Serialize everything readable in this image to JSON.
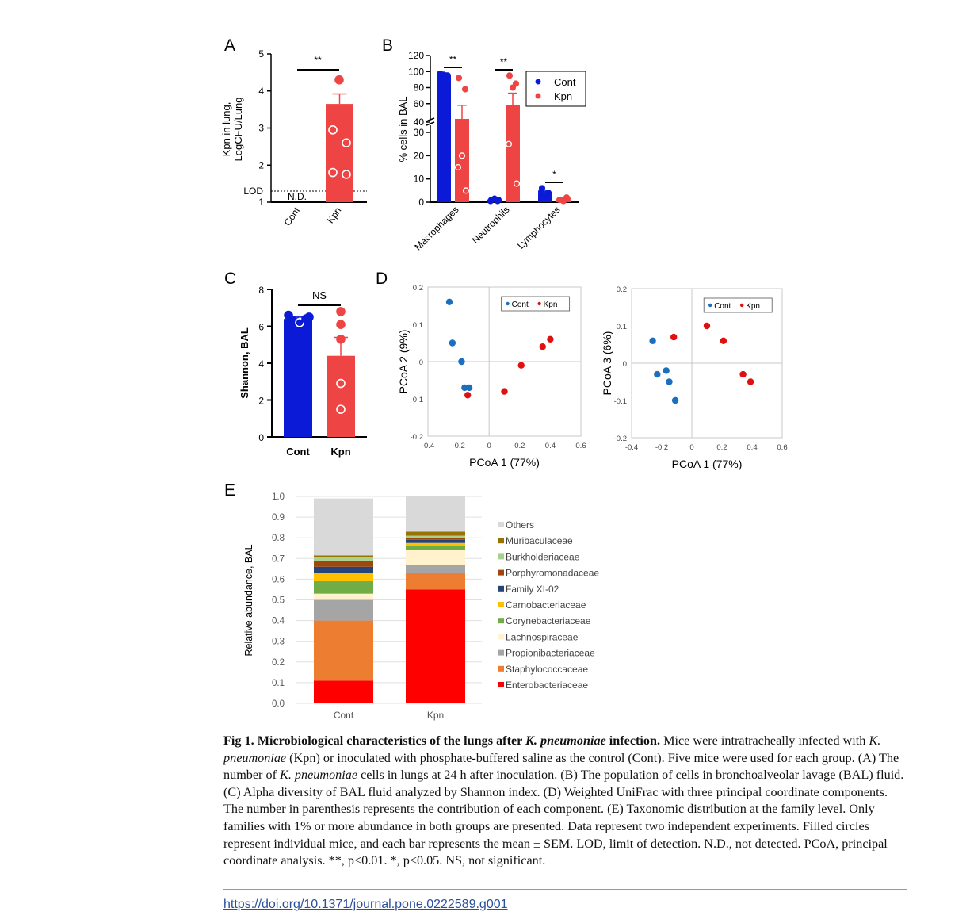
{
  "colors": {
    "cont": "#0a1ad6",
    "kpn": "#ef4444",
    "cont_pcoa": "#1a6fc0",
    "kpn_pcoa": "#e01010"
  },
  "chart_data": [
    {
      "panel": "A",
      "type": "bar",
      "ylabel": "Kpn in lung, LogCFU/Lung",
      "categories": [
        "Cont",
        "Kpn"
      ],
      "values": [
        null,
        3.65
      ],
      "sem": [
        null,
        0.27
      ],
      "points": {
        "Kpn": [
          4.3,
          2.95,
          2.6,
          1.8,
          1.75
        ]
      },
      "ylim": [
        1,
        5
      ],
      "yticks": [
        "1",
        "2",
        "3",
        "4",
        "5"
      ],
      "lod": {
        "label": "LOD",
        "value": 1.3
      },
      "annotations": [
        "N.D.",
        "**"
      ]
    },
    {
      "panel": "B",
      "type": "bar",
      "ylabel": "% cells in BAL",
      "categories": [
        "Macrophages",
        "Neutrophils",
        "Lymphocytes"
      ],
      "series": [
        {
          "name": "Cont",
          "values": [
            96,
            1,
            4
          ],
          "sem": [
            1,
            0.5,
            0.8
          ]
        },
        {
          "name": "Kpn",
          "values": [
            41,
            58,
            1
          ],
          "sem": [
            17,
            15,
            0.4
          ]
        }
      ],
      "points": {
        "Cont": [
          [
            97,
            95,
            96,
            97,
            95
          ],
          [
            1,
            0.5,
            1.5,
            0.5,
            1
          ],
          [
            6,
            4,
            3,
            4.5,
            3.5
          ]
        ],
        "Kpn": [
          [
            92,
            78,
            20,
            15,
            5
          ],
          [
            95,
            85,
            80,
            25,
            8
          ],
          [
            1,
            2,
            0.5,
            1,
            1.5
          ]
        ]
      },
      "ylim": [
        0,
        120
      ],
      "yticks": [
        "0",
        "10",
        "20",
        "30",
        "40",
        "60",
        "80",
        "100",
        "120"
      ],
      "annotations": [
        "**",
        "**",
        "*"
      ],
      "legend": [
        "Cont",
        "Kpn"
      ]
    },
    {
      "panel": "C",
      "type": "bar",
      "ylabel": "Shannon, BAL",
      "categories": [
        "Cont",
        "Kpn"
      ],
      "values": [
        6.4,
        4.4
      ],
      "sem": [
        0.1,
        1.0
      ],
      "points": {
        "Cont": [
          6.6,
          6.3,
          6.2,
          6.4,
          6.5
        ],
        "Kpn": [
          6.8,
          6.1,
          5.3,
          2.9,
          1.5
        ]
      },
      "ylim": [
        0,
        8
      ],
      "yticks": [
        "0",
        "2",
        "4",
        "6",
        "8"
      ],
      "annotations": [
        "NS"
      ]
    },
    {
      "panel": "D1",
      "type": "scatter",
      "xlabel": "PCoA 1 (77%)",
      "ylabel": "PCoA 2 (9%)",
      "xlim": [
        -0.4,
        0.6
      ],
      "ylim": [
        -0.2,
        0.2
      ],
      "xticks": [
        "-0.4",
        "-0.2",
        "0",
        "0.2",
        "0.4",
        "0.6"
      ],
      "yticks": [
        "-0.2",
        "-0.1",
        "0",
        "0.1",
        "0.2"
      ],
      "series": [
        {
          "name": "Cont",
          "x": [
            -0.26,
            -0.24,
            -0.18,
            -0.16,
            -0.13
          ],
          "y": [
            0.16,
            0.05,
            0.0,
            -0.07,
            -0.07
          ]
        },
        {
          "name": "Kpn",
          "x": [
            -0.14,
            0.1,
            0.21,
            0.35,
            0.4
          ],
          "y": [
            -0.09,
            -0.08,
            -0.01,
            0.04,
            0.06
          ]
        }
      ],
      "legend": [
        "Cont",
        "Kpn"
      ]
    },
    {
      "panel": "D2",
      "type": "scatter",
      "xlabel": "PCoA 1 (77%)",
      "ylabel": "PCoA 3 (6%)",
      "xlim": [
        -0.4,
        0.6
      ],
      "ylim": [
        -0.2,
        0.2
      ],
      "xticks": [
        "-0.4",
        "-0.2",
        "0",
        "0.2",
        "0.4",
        "0.6"
      ],
      "yticks": [
        "-0.2",
        "-0.1",
        "0",
        "0.1",
        "0.2"
      ],
      "series": [
        {
          "name": "Cont",
          "x": [
            -0.26,
            -0.23,
            -0.17,
            -0.15,
            -0.11
          ],
          "y": [
            0.06,
            -0.03,
            -0.02,
            -0.05,
            -0.1
          ]
        },
        {
          "name": "Kpn",
          "x": [
            -0.12,
            0.1,
            0.21,
            0.34,
            0.39
          ],
          "y": [
            0.07,
            0.1,
            0.06,
            -0.03,
            -0.05
          ]
        }
      ],
      "legend": [
        "Cont",
        "Kpn"
      ]
    },
    {
      "panel": "E",
      "type": "bar",
      "stacked": true,
      "ylabel": "Relative abundance, BAL",
      "categories": [
        "Cont",
        "Kpn"
      ],
      "ylim": [
        0,
        1
      ],
      "yticks": [
        "0.0",
        "0.1",
        "0.2",
        "0.3",
        "0.4",
        "0.5",
        "0.6",
        "0.7",
        "0.8",
        "0.9",
        "1.0"
      ],
      "series": [
        {
          "name": "Enterobacteriaceae",
          "color": "#ff0000",
          "values": [
            0.11,
            0.55
          ]
        },
        {
          "name": "Staphylococcaceae",
          "color": "#ed7d31",
          "values": [
            0.29,
            0.08
          ]
        },
        {
          "name": "Propionibacteriaceae",
          "color": "#a5a5a5",
          "values": [
            0.1,
            0.04
          ]
        },
        {
          "name": "Lachnospiraceae",
          "color": "#fff2cc",
          "values": [
            0.03,
            0.07
          ]
        },
        {
          "name": "Corynebacteriaceae",
          "color": "#70ad47",
          "values": [
            0.06,
            0.02
          ]
        },
        {
          "name": "Carnobacteriaceae",
          "color": "#ffc000",
          "values": [
            0.04,
            0.015
          ]
        },
        {
          "name": "Family XI-02",
          "color": "#264478",
          "values": [
            0.03,
            0.015
          ]
        },
        {
          "name": "Porphyromonadaceae",
          "color": "#9e480e",
          "values": [
            0.03,
            0.01
          ]
        },
        {
          "name": "Burkholderiaceae",
          "color": "#a9d18e",
          "values": [
            0.015,
            0.01
          ]
        },
        {
          "name": "Muribaculaceae",
          "color": "#997300",
          "values": [
            0.01,
            0.02
          ]
        },
        {
          "name": "Others",
          "color": "#d9d9d9",
          "values": [
            0.275,
            0.17
          ]
        }
      ]
    }
  ],
  "panel_labels": [
    "A",
    "B",
    "C",
    "D",
    "E"
  ],
  "caption": {
    "title_prefix": "Fig 1. Microbiological characteristics of the lungs after ",
    "title_species": "K. pneumoniae",
    "title_suffix": " infection.",
    "text": [
      " Mice were intratracheally infected with ",
      "K. pneumoniae",
      " (Kpn) or inoculated with phosphate-buffered saline as the control (Cont). Five mice were used for each group. (A) The number of ",
      "K. pneumoniae",
      " cells in lungs at 24 h after inoculation. (B) The population of cells in bronchoalveolar lavage (BAL) fluid. (C) Alpha diversity of BAL fluid analyzed by Shannon index. (D) Weighted UniFrac with three principal coordinate components. The number in parenthesis represents the contribution of each component. (E) Taxonomic distribution at the family level. Only families with 1% or more abundance in both groups are presented. Data represent two independent experiments. Filled circles represent individual mice, and each bar represents the mean ± SEM. LOD, limit of detection. N.D., not detected. PCoA, principal coordinate analysis. **, p<0.01. *, p<0.05. NS, not significant."
    ]
  },
  "doi": "https://doi.org/10.1371/journal.pone.0222589.g001"
}
